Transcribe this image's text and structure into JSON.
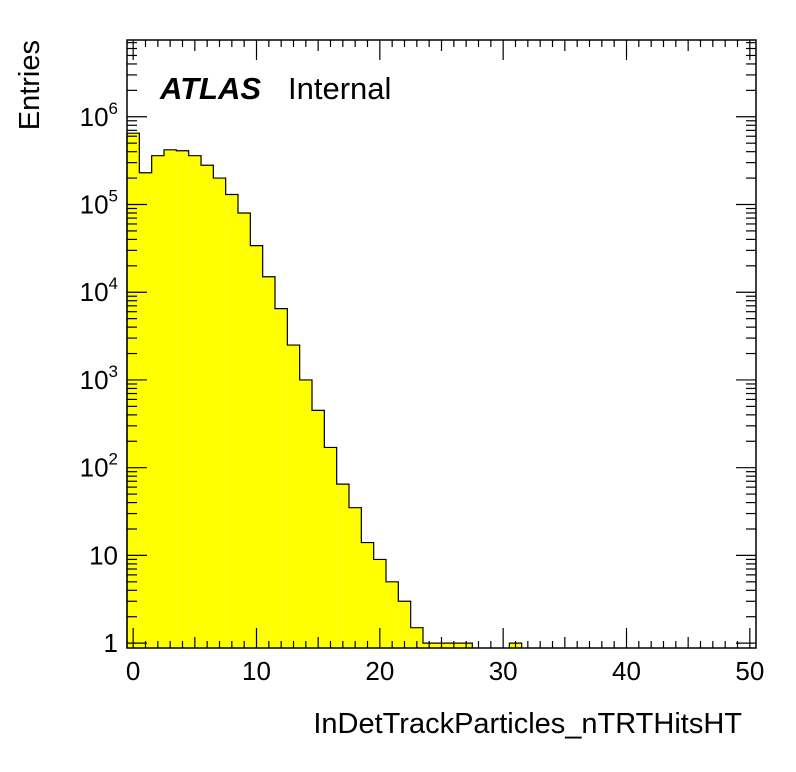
{
  "chart_data": {
    "type": "histogram",
    "title": "ATLAS",
    "subtitle": "Internal",
    "xlabel": "InDetTrackParticles_nTRTHitsHT",
    "ylabel": "Entries",
    "xlim": [
      -0.5,
      50.5
    ],
    "ylim": [
      0.88,
      7500000
    ],
    "yscale": "log",
    "fill_color": "#ffff00",
    "line_color": "#000000",
    "x_ticks": [
      0,
      10,
      20,
      30,
      40,
      50
    ],
    "x_tick_labels": [
      "0",
      "10",
      "20",
      "30",
      "40",
      "50"
    ],
    "y_ticks": [
      1,
      10,
      100,
      1000,
      10000,
      100000,
      1000000
    ],
    "y_tick_labels": [
      {
        "base": "1",
        "exp": ""
      },
      {
        "base": "10",
        "exp": ""
      },
      {
        "base": "10",
        "exp": "2"
      },
      {
        "base": "10",
        "exp": "3"
      },
      {
        "base": "10",
        "exp": "4"
      },
      {
        "base": "10",
        "exp": "5"
      },
      {
        "base": "10",
        "exp": "6"
      }
    ],
    "bin_width": 1,
    "bin_start": -0.5,
    "values": [
      650000,
      230000,
      360000,
      420000,
      410000,
      360000,
      280000,
      200000,
      130000,
      80000,
      34000,
      15000,
      6500,
      2500,
      1000,
      450,
      170,
      65,
      35,
      14,
      9,
      5,
      3,
      1.5,
      1,
      1,
      1,
      1,
      0,
      0,
      0,
      1,
      0,
      0,
      0,
      0,
      0,
      0,
      0,
      0,
      0,
      0,
      0,
      0,
      0,
      0,
      0,
      0,
      0,
      0,
      0
    ]
  }
}
